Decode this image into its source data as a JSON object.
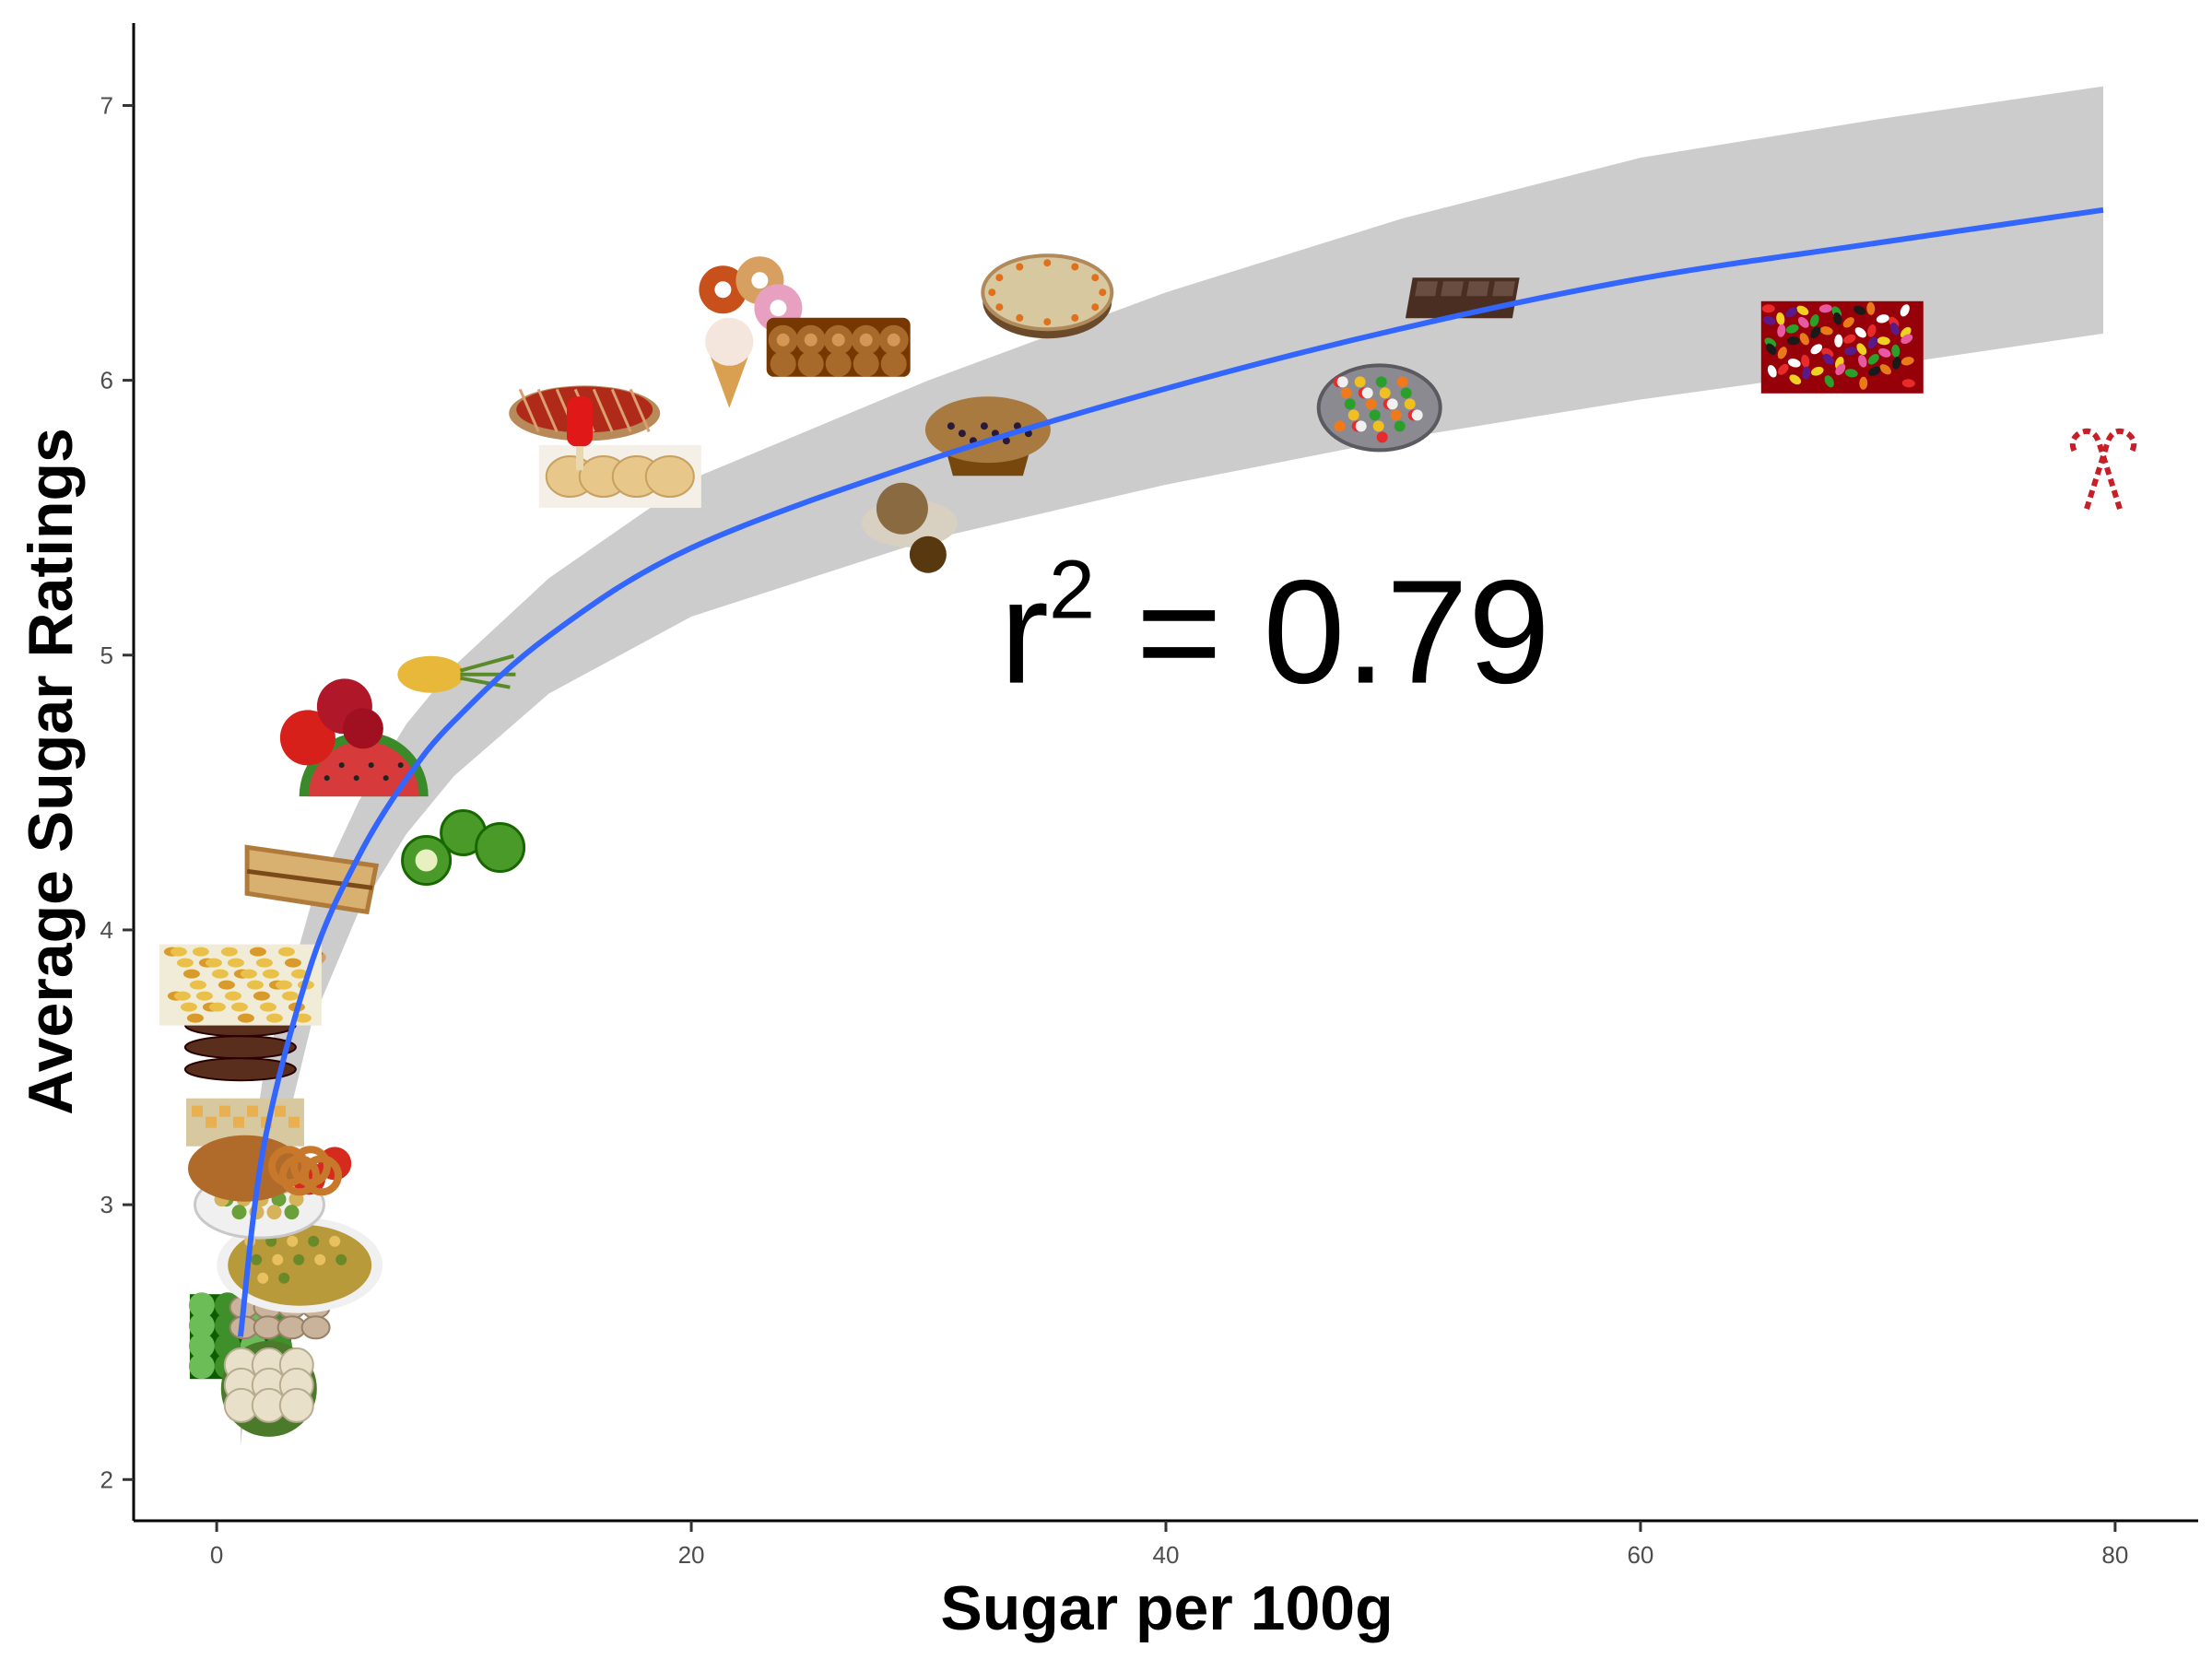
{
  "chart_data": {
    "type": "scatter",
    "xlabel": "Sugar per 100g",
    "ylabel": "Average Sugar Ratings",
    "xlim": [
      -3.5,
      83.5
    ],
    "ylim": [
      1.85,
      7.3
    ],
    "x_ticks": [
      0,
      20,
      40,
      60,
      80
    ],
    "y_ticks": [
      2,
      3,
      4,
      5,
      6,
      7
    ],
    "grid": false,
    "annotation": {
      "base": "r",
      "exponent": "2",
      "rest": " = 0.79",
      "x": 33,
      "y": 4.9
    },
    "fit_line": {
      "color": "#3366ff",
      "x": [
        1,
        2,
        4,
        6,
        8,
        10,
        14,
        20,
        30,
        40,
        50,
        60,
        70,
        79.5
      ],
      "y": [
        2.52,
        3.22,
        3.88,
        4.27,
        4.55,
        4.76,
        5.07,
        5.39,
        5.71,
        5.97,
        6.19,
        6.37,
        6.5,
        6.62
      ],
      "lo": [
        2.12,
        2.95,
        3.66,
        4.07,
        4.35,
        4.56,
        4.86,
        5.14,
        5.42,
        5.62,
        5.79,
        5.93,
        6.05,
        6.17
      ],
      "hi": [
        2.92,
        3.49,
        4.1,
        4.47,
        4.75,
        4.96,
        5.28,
        5.64,
        6.0,
        6.32,
        6.59,
        6.81,
        6.95,
        7.07
      ],
      "band_color": "#cccccc"
    },
    "points": [
      {
        "name": "broccoli",
        "x": 1.0,
        "y": 2.52,
        "icon": "broccoli-icon",
        "color": "#3f8f2a"
      },
      {
        "name": "cauliflower",
        "x": 2.2,
        "y": 2.35,
        "icon": "cauliflower-icon",
        "color": "#e8e0c8"
      },
      {
        "name": "mushrooms",
        "x": 2.7,
        "y": 2.58,
        "icon": "mushroom-icon",
        "color": "#c9b39a"
      },
      {
        "name": "soup",
        "x": 3.5,
        "y": 2.78,
        "icon": "soup-icon",
        "color": "#b89a3a"
      },
      {
        "name": "pasta salad",
        "x": 1.8,
        "y": 3.0,
        "icon": "salad-icon",
        "color": "#d6b25a"
      },
      {
        "name": "tomatoes",
        "x": 2.8,
        "y": 3.15,
        "icon": "tomato-icon",
        "color": "#d62a1e"
      },
      {
        "name": "potatoes",
        "x": 1.2,
        "y": 3.3,
        "icon": "potato-icon",
        "color": "#b06a2a"
      },
      {
        "name": "onion rings",
        "x": 3.8,
        "y": 3.12,
        "icon": "onion-ring-icon",
        "color": "#c8782a"
      },
      {
        "name": "sausages",
        "x": 1.0,
        "y": 3.6,
        "icon": "sausage-icon",
        "color": "#5a2e1c"
      },
      {
        "name": "hot dog",
        "x": 2.9,
        "y": 3.9,
        "icon": "hotdog-icon",
        "color": "#b85a30"
      },
      {
        "name": "mac and cheese",
        "x": 1.0,
        "y": 3.8,
        "icon": "mac-cheese-icon",
        "color": "#e8c04a"
      },
      {
        "name": "grilled cheese",
        "x": 4.0,
        "y": 4.2,
        "icon": "sandwich-icon",
        "color": "#b07a3a"
      },
      {
        "name": "green apples",
        "x": 10.0,
        "y": 4.3,
        "icon": "apple-icon",
        "color": "#4a9a2a"
      },
      {
        "name": "watermelon",
        "x": 6.2,
        "y": 4.62,
        "icon": "watermelon-icon",
        "color": "#d63a3a"
      },
      {
        "name": "berries",
        "x": 5.0,
        "y": 4.8,
        "icon": "berry-icon",
        "color": "#b0182a"
      },
      {
        "name": "pineapple",
        "x": 9.8,
        "y": 4.93,
        "icon": "pineapple-icon",
        "color": "#e8b83a"
      },
      {
        "name": "crepes",
        "x": 17.0,
        "y": 5.65,
        "icon": "crepe-icon",
        "color": "#e8c88a"
      },
      {
        "name": "cherry pie",
        "x": 15.5,
        "y": 5.88,
        "icon": "pie-icon",
        "color": "#b02a1a"
      },
      {
        "name": "popsicle",
        "x": 15.3,
        "y": 5.82,
        "icon": "popsicle-icon",
        "color": "#e01818"
      },
      {
        "name": "ice cream",
        "x": 21.6,
        "y": 6.1,
        "icon": "ice-cream-icon",
        "color": "#e8b070"
      },
      {
        "name": "donuts",
        "x": 22.5,
        "y": 6.33,
        "icon": "donut-icon",
        "color": "#c86a2a"
      },
      {
        "name": "cinnamon rolls",
        "x": 26.2,
        "y": 6.12,
        "icon": "cinnamon-roll-icon",
        "color": "#a86a2a"
      },
      {
        "name": "cookies",
        "x": 29.2,
        "y": 5.5,
        "icon": "cookie-icon",
        "color": "#8a6a40"
      },
      {
        "name": "muffin",
        "x": 32.5,
        "y": 5.8,
        "icon": "muffin-icon",
        "color": "#a87a40"
      },
      {
        "name": "carrot cake",
        "x": 35.0,
        "y": 6.32,
        "icon": "cake-icon",
        "color": "#d8c8a0"
      },
      {
        "name": "gummy bears",
        "x": 49.0,
        "y": 5.9,
        "icon": "gummy-icon",
        "color": "#e85a2a"
      },
      {
        "name": "chocolate",
        "x": 52.5,
        "y": 6.3,
        "icon": "chocolate-icon",
        "color": "#4a2e22"
      },
      {
        "name": "jelly beans",
        "x": 68.5,
        "y": 6.12,
        "icon": "jellybean-icon",
        "color": "#c82a3a"
      },
      {
        "name": "candy canes",
        "x": 79.5,
        "y": 5.7,
        "icon": "candy-cane-icon",
        "color": "#c81e28"
      }
    ]
  }
}
